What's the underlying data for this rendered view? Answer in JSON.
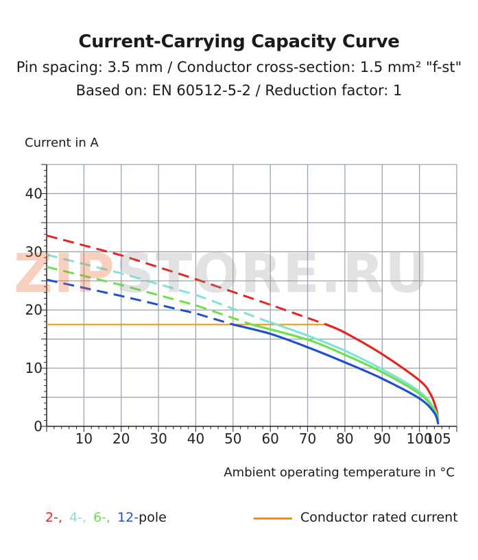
{
  "title": "Current-Carrying Capacity Curve",
  "subtitle_1": "Pin spacing: 3.5 mm / Conductor cross-section: 1.5 mm² \"f-st\"",
  "subtitle_2": "Based on: EN 60512-5-2 / Reduction factor: 1",
  "watermark": {
    "part_a": "ZIP",
    "part_b": "STORE.RU"
  },
  "legend": {
    "poles": [
      {
        "label": "2-,",
        "color": "#e52421"
      },
      {
        "label": "4-,",
        "color": "#7fe3d6"
      },
      {
        "label": "6-,",
        "color": "#6ee04a"
      },
      {
        "label": "12-",
        "color": "#1f4fd1"
      }
    ],
    "poles_suffix": "pole",
    "rated_label": "Conductor rated current",
    "rated_color": "#f39200"
  },
  "chart_data": {
    "type": "line",
    "title": "Current-Carrying Capacity Curve",
    "xlabel": "Ambient operating temperature in  °C",
    "ylabel": "Current in A",
    "xlim": [
      0,
      110
    ],
    "ylim": [
      0,
      45
    ],
    "x_ticks": [
      10,
      20,
      30,
      40,
      50,
      60,
      70,
      80,
      90,
      100,
      105
    ],
    "y_ticks": [
      0,
      10,
      20,
      30,
      40
    ],
    "grid": true,
    "rated_current": {
      "value": 17.5,
      "x_range": [
        0,
        75
      ],
      "color": "#f39200"
    },
    "series": [
      {
        "name": "2-pole",
        "color": "#e52421",
        "dashed": [
          [
            0,
            32.8
          ],
          [
            20,
            29.4
          ],
          [
            40,
            25.3
          ],
          [
            60,
            20.9
          ],
          [
            75,
            17.5
          ]
        ],
        "solid": [
          [
            75,
            17.5
          ],
          [
            80,
            16.1
          ],
          [
            90,
            12.4
          ],
          [
            100,
            7.9
          ],
          [
            103,
            5.5
          ],
          [
            104.5,
            3.0
          ],
          [
            105,
            1.0
          ]
        ]
      },
      {
        "name": "4-pole",
        "color": "#7fe3d6",
        "dashed": [
          [
            0,
            29.5
          ],
          [
            20,
            26.3
          ],
          [
            40,
            22.6
          ],
          [
            59,
            18.1
          ]
        ],
        "solid": [
          [
            59,
            18.1
          ],
          [
            70,
            15.6
          ],
          [
            80,
            13.0
          ],
          [
            90,
            9.8
          ],
          [
            100,
            6.0
          ],
          [
            104,
            3.0
          ],
          [
            105,
            1.0
          ]
        ]
      },
      {
        "name": "6-pole",
        "color": "#6ee04a",
        "dashed": [
          [
            0,
            27.4
          ],
          [
            20,
            24.3
          ],
          [
            40,
            20.8
          ],
          [
            55,
            17.5
          ]
        ],
        "solid": [
          [
            55,
            17.5
          ],
          [
            70,
            14.9
          ],
          [
            80,
            12.3
          ],
          [
            90,
            9.3
          ],
          [
            100,
            5.6
          ],
          [
            104,
            2.8
          ],
          [
            105,
            1.0
          ]
        ]
      },
      {
        "name": "12-pole",
        "color": "#1f4fd1",
        "dashed": [
          [
            0,
            25.2
          ],
          [
            20,
            22.4
          ],
          [
            40,
            19.4
          ],
          [
            50,
            17.5
          ]
        ],
        "solid": [
          [
            50,
            17.5
          ],
          [
            60,
            15.9
          ],
          [
            70,
            13.6
          ],
          [
            80,
            11.0
          ],
          [
            90,
            8.2
          ],
          [
            100,
            4.8
          ],
          [
            104,
            2.3
          ],
          [
            105,
            0.5
          ]
        ]
      }
    ]
  }
}
